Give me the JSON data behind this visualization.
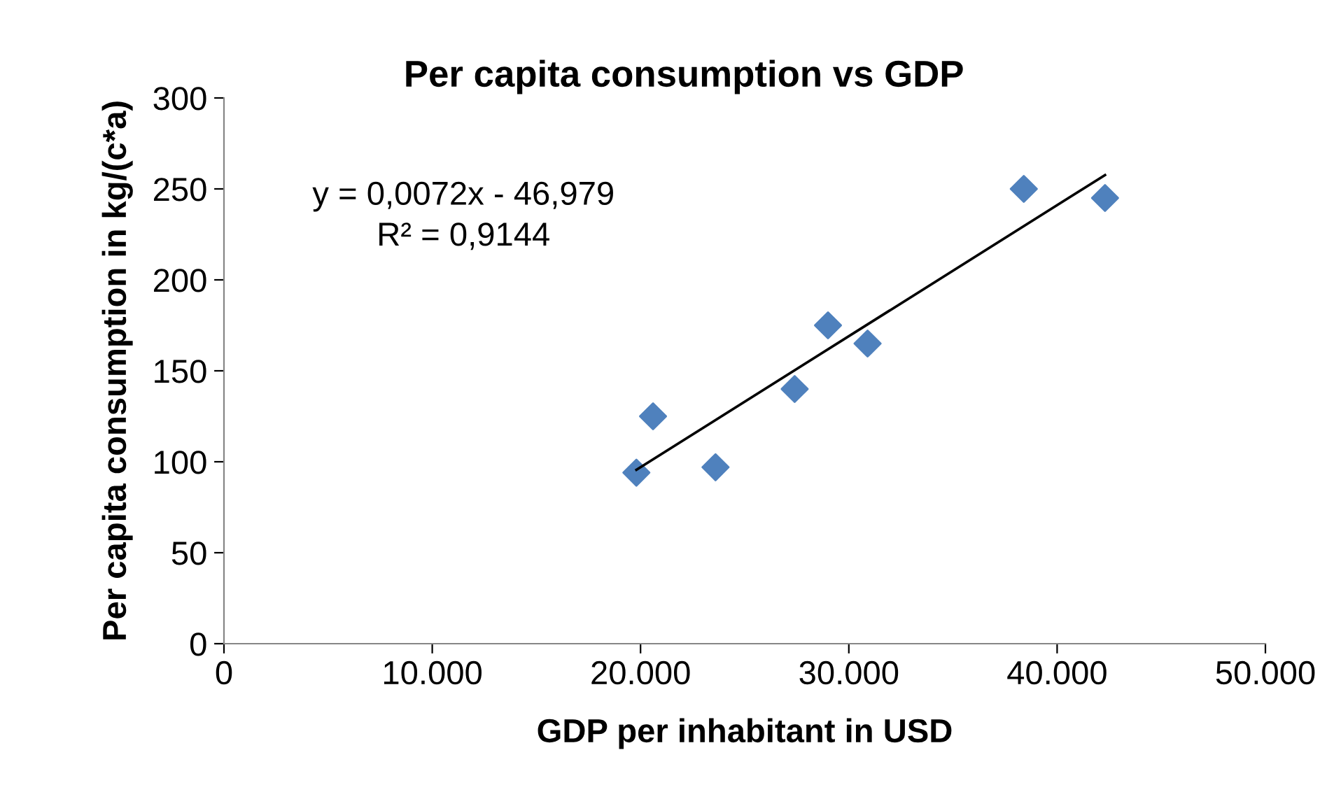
{
  "chart_data": {
    "type": "scatter",
    "title": "Per capita consumption vs GDP",
    "xlabel": "GDP per inhabitant in USD",
    "ylabel": "Per capita consumption in kg/(c*a)",
    "series": [
      {
        "color": "#4f81bd",
        "marker": "diamond",
        "x": [
          19800,
          20600,
          23600,
          27400,
          29000,
          30900,
          38400,
          42300
        ],
        "values": [
          94,
          125,
          97,
          140,
          175,
          165,
          250,
          245
        ]
      },
      {
        "type": "line",
        "color": "#000000",
        "marker": "none",
        "line_style": "solid",
        "x": [
          19800,
          42300
        ],
        "values": [
          95.6,
          257.6
        ]
      }
    ],
    "annotations": [
      "y = 0,0072x - 46,979",
      "R² = 0,9144"
    ],
    "xlim": [
      0,
      50000
    ],
    "ylim": [
      0,
      300
    ],
    "xticks": [
      0,
      {
        "value": 10000,
        "label": "10.000"
      },
      {
        "value": 20000,
        "label": "20.000"
      },
      {
        "value": 30000,
        "label": "30.000"
      },
      {
        "value": 40000,
        "label": "40.000"
      },
      {
        "value": 50000,
        "label": "50.000"
      }
    ],
    "yticks": [
      0,
      50,
      100,
      150,
      200,
      250,
      300
    ],
    "grid": false,
    "legend": false
  }
}
